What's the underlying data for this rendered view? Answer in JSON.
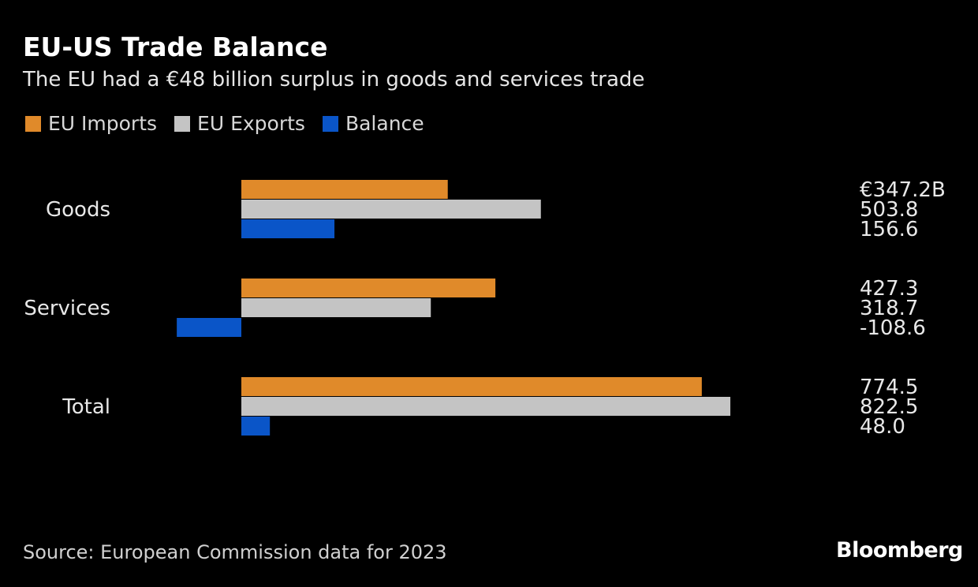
{
  "title": "EU-US Trade Balance",
  "subtitle": "The EU had a €48 billion surplus in goods and services trade",
  "source": "Source: European Commission data for 2023",
  "brand": "Bloomberg",
  "chart_data": {
    "type": "bar",
    "orientation": "horizontal",
    "categories": [
      "Goods",
      "Services",
      "Total"
    ],
    "series": [
      {
        "name": "EU Imports",
        "color": "#e08a2a",
        "values": [
          347.2,
          427.3,
          774.5
        ],
        "labels": [
          "€347.2B",
          "427.3",
          "774.5"
        ]
      },
      {
        "name": "EU Exports",
        "color": "#c4c4c4",
        "values": [
          503.8,
          318.7,
          822.5
        ],
        "labels": [
          "503.8",
          "318.7",
          "822.5"
        ]
      },
      {
        "name": "Balance",
        "color": "#0a55c8",
        "values": [
          156.6,
          -108.6,
          48.0
        ],
        "labels": [
          "156.6",
          "-108.6",
          "48.0"
        ]
      }
    ],
    "unit": "€ billions",
    "grid": false,
    "legend": "top-left"
  }
}
